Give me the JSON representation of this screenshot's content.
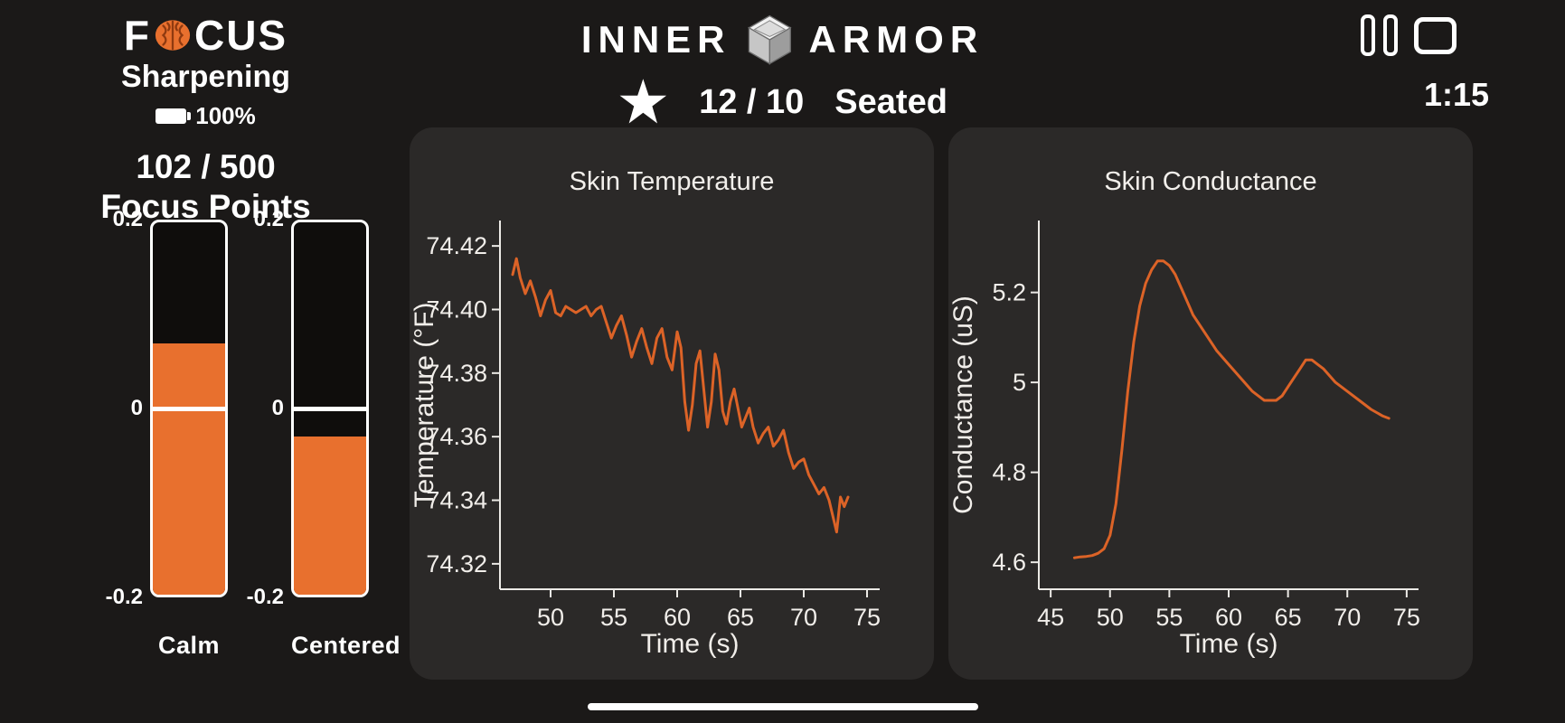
{
  "colors": {
    "background": "#1b1918",
    "panel": "#2b2928",
    "accent": "#E8702E",
    "line": "#DC6327"
  },
  "header": {
    "left": {
      "logo_pre": "F",
      "logo_post": "CUS",
      "subtitle": "Sharpening",
      "battery": "100%",
      "score": "102 / 500",
      "score_label": "Focus Points"
    },
    "center": {
      "brand_left": "INNER",
      "brand_right": "ARMOR",
      "count": "12 / 10",
      "posture": "Seated"
    },
    "right": {
      "timer": "1:15"
    }
  },
  "gauges": {
    "scale_max_label": "0.2",
    "scale_zero_label": "0",
    "scale_min_label": "-0.2",
    "max": 0.2,
    "min": -0.2,
    "items": [
      {
        "label": "Calm",
        "value": 0.07
      },
      {
        "label": "Centered",
        "value": -0.03
      }
    ]
  },
  "chart_data": [
    {
      "type": "line",
      "title": "Skin Temperature",
      "xlabel": "Time (s)",
      "ylabel": "Temperature (°F)",
      "xlim": [
        46,
        76
      ],
      "ylim": [
        74.312,
        74.428
      ],
      "xticks": [
        50,
        55,
        60,
        65,
        70,
        75
      ],
      "yticks": [
        74.32,
        74.34,
        74.36,
        74.38,
        74.4,
        74.42
      ],
      "ytick_labels": [
        "74.32",
        "74.34",
        "74.36",
        "74.38",
        "74.40",
        "74.42"
      ],
      "legend": null,
      "grid": false,
      "line_color": "#DC6327",
      "x": [
        47,
        47.3,
        47.6,
        48,
        48.4,
        48.8,
        49.2,
        49.6,
        50,
        50.4,
        50.8,
        51.2,
        51.6,
        52,
        52.4,
        52.8,
        53.2,
        53.6,
        54,
        54.4,
        54.8,
        55.2,
        55.6,
        56,
        56.4,
        56.8,
        57.2,
        57.6,
        58,
        58.4,
        58.8,
        59.2,
        59.6,
        60,
        60.3,
        60.6,
        60.9,
        61.2,
        61.5,
        61.8,
        62.1,
        62.4,
        62.7,
        63,
        63.3,
        63.6,
        63.9,
        64.2,
        64.5,
        64.8,
        65.1,
        65.4,
        65.7,
        66,
        66.4,
        66.8,
        67.2,
        67.6,
        68,
        68.4,
        68.8,
        69.2,
        69.6,
        70,
        70.4,
        70.8,
        71.2,
        71.6,
        72,
        72.3,
        72.6,
        72.9,
        73.2,
        73.5
      ],
      "y": [
        74.411,
        74.416,
        74.41,
        74.405,
        74.409,
        74.404,
        74.398,
        74.403,
        74.406,
        74.399,
        74.398,
        74.401,
        74.4,
        74.399,
        74.4,
        74.401,
        74.398,
        74.4,
        74.401,
        74.396,
        74.391,
        74.395,
        74.398,
        74.392,
        74.385,
        74.39,
        74.394,
        74.388,
        74.383,
        74.391,
        74.394,
        74.385,
        74.381,
        74.393,
        74.388,
        74.371,
        74.362,
        74.37,
        74.383,
        74.387,
        74.375,
        74.363,
        74.371,
        74.386,
        74.381,
        74.368,
        74.364,
        74.371,
        74.375,
        74.369,
        74.363,
        74.366,
        74.369,
        74.363,
        74.358,
        74.361,
        74.363,
        74.357,
        74.359,
        74.362,
        74.355,
        74.35,
        74.352,
        74.353,
        74.348,
        74.345,
        74.342,
        74.344,
        74.34,
        74.335,
        74.33,
        74.341,
        74.338,
        74.341
      ]
    },
    {
      "type": "line",
      "title": "Skin Conductance",
      "xlabel": "Time (s)",
      "ylabel": "Conductance (uS)",
      "xlim": [
        44,
        76
      ],
      "ylim": [
        4.54,
        5.36
      ],
      "xticks": [
        45,
        50,
        55,
        60,
        65,
        70,
        75
      ],
      "yticks": [
        4.6,
        4.8,
        5,
        5.2
      ],
      "ytick_labels": [
        "4.6",
        "4.8",
        "5",
        "5.2"
      ],
      "legend": null,
      "grid": false,
      "line_color": "#DC6327",
      "x": [
        47,
        47.5,
        48,
        48.5,
        49,
        49.5,
        50,
        50.5,
        51,
        51.5,
        52,
        52.5,
        53,
        53.5,
        54,
        54.5,
        55,
        55.5,
        56,
        56.5,
        57,
        58,
        59,
        60,
        61,
        62,
        63,
        63.5,
        64,
        64.5,
        65,
        65.5,
        66,
        66.5,
        67,
        67.5,
        68,
        69,
        70,
        71,
        72,
        73,
        73.5
      ],
      "y": [
        4.61,
        4.612,
        4.613,
        4.615,
        4.62,
        4.63,
        4.66,
        4.73,
        4.85,
        4.98,
        5.09,
        5.17,
        5.22,
        5.25,
        5.27,
        5.27,
        5.26,
        5.24,
        5.21,
        5.18,
        5.15,
        5.11,
        5.07,
        5.04,
        5.01,
        4.98,
        4.96,
        4.96,
        4.96,
        4.97,
        4.99,
        5.01,
        5.03,
        5.05,
        5.05,
        5.04,
        5.03,
        5.0,
        4.98,
        4.96,
        4.94,
        4.925,
        4.92
      ]
    }
  ]
}
